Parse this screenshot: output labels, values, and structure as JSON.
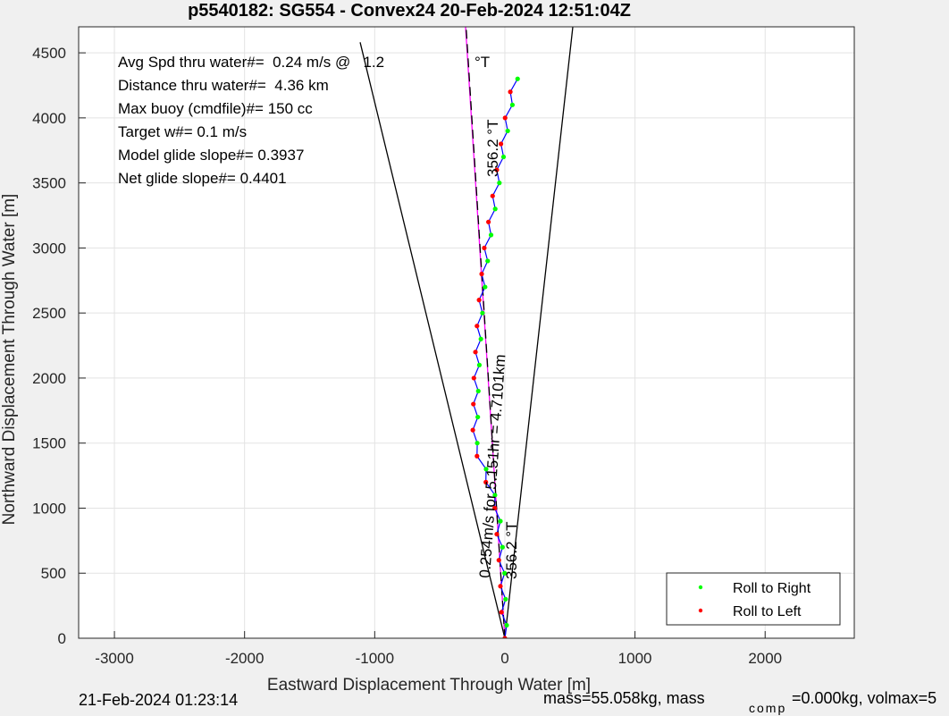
{
  "chart_data": {
    "type": "line",
    "title": "p5540182: SG554 - Convex24 20-Feb-2024 12:51:04Z",
    "xlabel": "Eastward Displacement Through Water [m]",
    "ylabel": "Northward Displacement Through Water [m]",
    "xlim": [
      -3275,
      2685
    ],
    "ylim": [
      0,
      4700
    ],
    "xticks": [
      -3000,
      -2000,
      -1000,
      0,
      1000,
      2000
    ],
    "yticks": [
      0,
      500,
      1000,
      1500,
      2000,
      2500,
      3000,
      3500,
      4000,
      4500
    ],
    "grid": true,
    "legend": "lower right",
    "lines": [
      {
        "color": "#000000",
        "dash": false,
        "x": [
          0,
          -1112
        ],
        "y": [
          0,
          4581
        ]
      },
      {
        "color": "#000000",
        "dash": false,
        "x": [
          0,
          522
        ],
        "y": [
          0,
          4698
        ]
      },
      {
        "color": "#ff00ff",
        "dash": false,
        "x": [
          0,
          -302
        ],
        "y": [
          0,
          4700
        ]
      },
      {
        "color": "#000000",
        "dash": true,
        "x": [
          0,
          -298
        ],
        "y": [
          0,
          4700
        ]
      }
    ],
    "series": [
      {
        "mode": "line",
        "color": "#0000ff",
        "x": [
          0,
          14,
          -26,
          6,
          -34,
          -2,
          -46,
          -18,
          -62,
          -34,
          -78,
          -76,
          -146,
          -144,
          -214,
          -212,
          -246,
          -208,
          -242,
          -204,
          -238,
          -196,
          -226,
          -184,
          -214,
          -172,
          -198,
          -152,
          -178,
          -132,
          -158,
          -106,
          -126,
          -74,
          -94,
          -42,
          -62,
          -10,
          -30,
          22,
          2,
          58,
          42,
          98
        ],
        "values": [
          0,
          100,
          200,
          300,
          400,
          500,
          600,
          700,
          800,
          900,
          1000,
          1100,
          1200,
          1300,
          1400,
          1500,
          1600,
          1700,
          1800,
          1900,
          2000,
          2100,
          2200,
          2300,
          2400,
          2500,
          2600,
          2700,
          2800,
          2900,
          3000,
          3100,
          3200,
          3300,
          3400,
          3500,
          3600,
          3700,
          3800,
          3900,
          4000,
          4100,
          4200,
          4300
        ]
      },
      {
        "mode": "markers",
        "name": "Roll to Right",
        "color": "#00ff00",
        "x": [
          14,
          6,
          -2,
          -18,
          -34,
          -76,
          -144,
          -212,
          -208,
          -204,
          -196,
          -184,
          -172,
          -152,
          -132,
          -106,
          -74,
          -42,
          -10,
          22,
          58,
          98
        ],
        "values": [
          100,
          300,
          500,
          700,
          900,
          1100,
          1300,
          1500,
          1700,
          1900,
          2100,
          2300,
          2500,
          2700,
          2900,
          3100,
          3300,
          3500,
          3700,
          3900,
          4100,
          4300
        ]
      },
      {
        "mode": "markers",
        "name": "Roll to Left",
        "color": "#ff0000",
        "x": [
          0,
          -26,
          -34,
          -46,
          -62,
          -78,
          -146,
          -214,
          -246,
          -242,
          -238,
          -226,
          -214,
          -198,
          -178,
          -158,
          -126,
          -94,
          -62,
          -30,
          2,
          42
        ],
        "values": [
          0,
          200,
          400,
          600,
          800,
          1000,
          1200,
          1400,
          1600,
          1800,
          2000,
          2200,
          2400,
          2600,
          2800,
          3000,
          3200,
          3400,
          3600,
          3800,
          4000,
          4200
        ]
      }
    ],
    "annotations": [
      "Avg Spd thru water#=  0.24 m/s @   1.2",
      "°T",
      "Distance thru water#=  4.36 km",
      "Max buoy (cmdfile)#= 150 cc",
      "Target w#= 0.1 m/s",
      "Model glide slope#= 0.3937",
      "Net glide slope#= 0.4401",
      "356.2 °T",
      "0.254m/s for 5.151hr = 4.7101km",
      "356.2 °T"
    ],
    "footer": [
      "21-Feb-2024 01:23:14",
      "mass=55.058kg, mass",
      "comp",
      "=0.000kg, volmax=5"
    ]
  }
}
